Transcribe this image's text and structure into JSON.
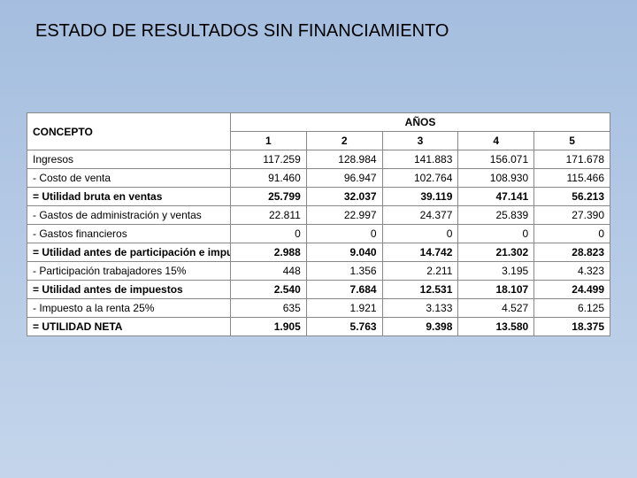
{
  "title": "ESTADO DE RESULTADOS SIN FINANCIAMIENTO",
  "table": {
    "concept_header": "CONCEPTO",
    "years_header": "AÑOS",
    "year_labels": [
      "1",
      "2",
      "3",
      "4",
      "5"
    ],
    "colors": {
      "background": "#ffffff",
      "border": "#888888",
      "slide_bg_top": "#a5bedf",
      "slide_bg_bottom": "#c4d5eb",
      "text": "#000000"
    },
    "fontsize": 12,
    "rows": [
      {
        "label": "Ingresos",
        "bold": false,
        "values": [
          "117.259",
          "128.984",
          "141.883",
          "156.071",
          "171.678"
        ]
      },
      {
        "label": " - Costo de venta",
        "bold": false,
        "values": [
          "91.460",
          "96.947",
          "102.764",
          "108.930",
          "115.466"
        ]
      },
      {
        "label": " = Utilidad bruta en ventas",
        "bold": true,
        "values": [
          "25.799",
          "32.037",
          "39.119",
          "47.141",
          "56.213"
        ]
      },
      {
        "label": " - Gastos de administración y ventas",
        "bold": false,
        "values": [
          "22.811",
          "22.997",
          "24.377",
          "25.839",
          "27.390"
        ]
      },
      {
        "label": " - Gastos financieros",
        "bold": false,
        "values": [
          "0",
          "0",
          "0",
          "0",
          "0"
        ]
      },
      {
        "label": " = Utilidad antes de participación e impu",
        "bold": true,
        "values": [
          "2.988",
          "9.040",
          "14.742",
          "21.302",
          "28.823"
        ]
      },
      {
        "label": " - Participación trabajadores 15%",
        "bold": false,
        "values": [
          "448",
          "1.356",
          "2.211",
          "3.195",
          "4.323"
        ]
      },
      {
        "label": " = Utilidad antes de impuestos",
        "bold": true,
        "values": [
          "2.540",
          "7.684",
          "12.531",
          "18.107",
          "24.499"
        ]
      },
      {
        "label": " - Impuesto a la renta 25%",
        "bold": false,
        "values": [
          "635",
          "1.921",
          "3.133",
          "4.527",
          "6.125"
        ]
      },
      {
        "label": " = UTILIDAD NETA",
        "bold": true,
        "values": [
          "1.905",
          "5.763",
          "9.398",
          "13.580",
          "18.375"
        ]
      }
    ]
  }
}
